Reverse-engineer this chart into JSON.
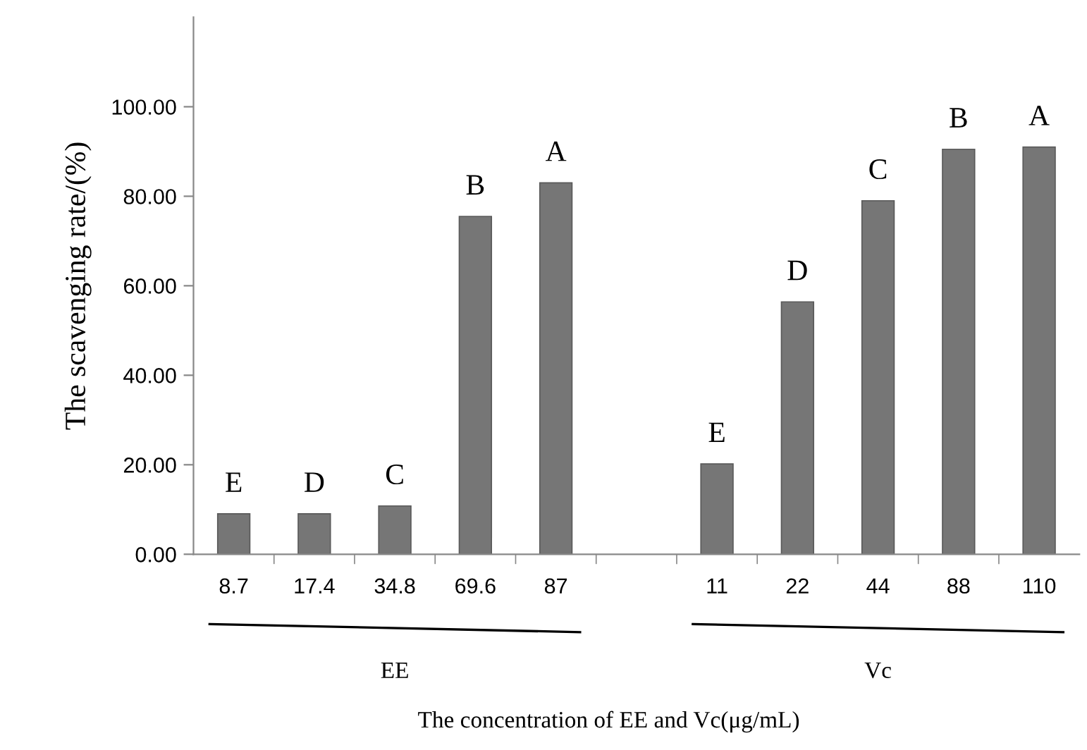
{
  "chart_data": {
    "type": "bar",
    "xlabel": "The concentration of EE and Vc(μg/mL)",
    "ylabel": "The scavenging rate/(%)",
    "categories": [
      "8.7",
      "17.4",
      "34.8",
      "69.6",
      "87",
      null,
      "11",
      "22",
      "44",
      "88",
      "110"
    ],
    "values": [
      9.05,
      9.05,
      10.8,
      75.5,
      83.0,
      null,
      20.2,
      56.4,
      79.0,
      90.5,
      91.0
    ],
    "color": "#767676",
    "ylim": [
      0,
      120
    ],
    "yticks": [
      {
        "value": 0,
        "label": "0.00"
      },
      {
        "value": 20,
        "label": "20.00"
      },
      {
        "value": 40,
        "label": "40.00"
      },
      {
        "value": 60,
        "label": "60.00"
      },
      {
        "value": 80,
        "label": "80.00"
      },
      {
        "value": 100,
        "label": "100.00"
      }
    ],
    "grid": false,
    "annotations": [
      {
        "text": "E",
        "x": "8.7",
        "y": 9.05
      },
      {
        "text": "D",
        "x": "17.4",
        "y": 9.05
      },
      {
        "text": "C",
        "x": "34.8",
        "y": 10.8
      },
      {
        "text": "B",
        "x": "69.6",
        "y": 75.5
      },
      {
        "text": "A",
        "x": "87",
        "y": 83.0
      },
      {
        "text": "E",
        "x": "11",
        "y": 20.2
      },
      {
        "text": "D",
        "x": "22",
        "y": 56.4
      },
      {
        "text": "C",
        "x": "44",
        "y": 79.0
      },
      {
        "text": "B",
        "x": "88",
        "y": 90.5
      },
      {
        "text": "A",
        "x": "110",
        "y": 91.0
      },
      "EE",
      "Vc"
    ]
  }
}
